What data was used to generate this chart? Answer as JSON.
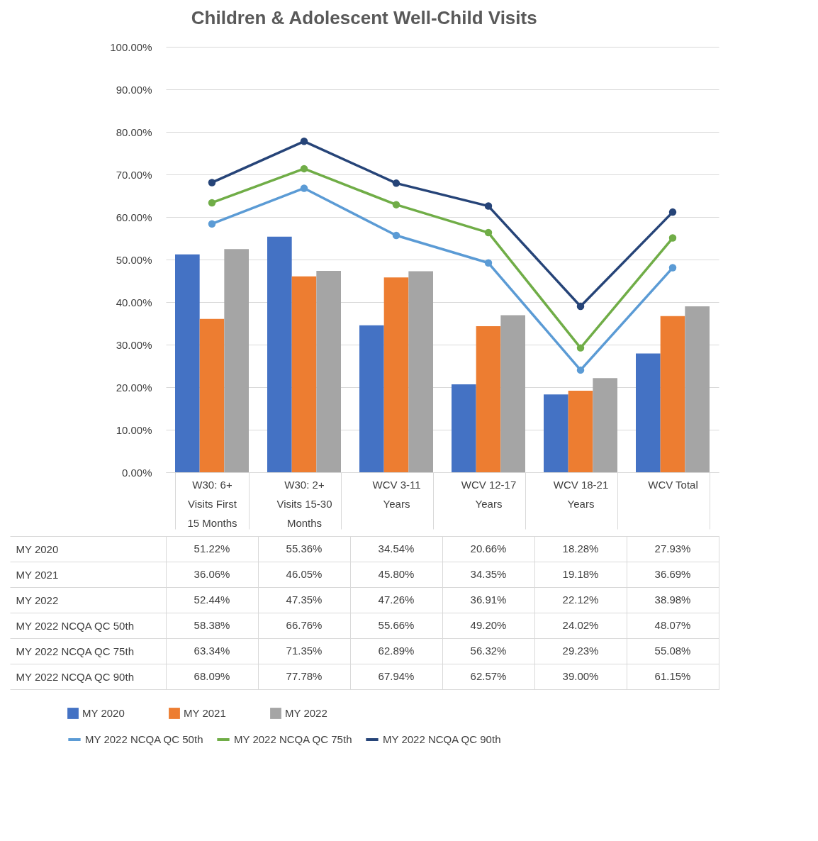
{
  "chart_data": {
    "type": "bar",
    "title": "Children & Adolescent Well-Child Visits",
    "categories": [
      "W30: 6+ Visits First 15 Months",
      "W30: 2+ Visits 15-30 Months",
      "WCV 3-11 Years",
      "WCV 12-17 Years",
      "WCV 18-21 Years",
      "WCV Total"
    ],
    "ylim": [
      0,
      100
    ],
    "yticks": [
      {
        "value": 0,
        "label": "0.00%"
      },
      {
        "value": 10,
        "label": "10.00%"
      },
      {
        "value": 20,
        "label": "20.00%"
      },
      {
        "value": 30,
        "label": "30.00%"
      },
      {
        "value": 40,
        "label": "40.00%"
      },
      {
        "value": 50,
        "label": "50.00%"
      },
      {
        "value": 60,
        "label": "60.00%"
      },
      {
        "value": 70,
        "label": "70.00%"
      },
      {
        "value": 80,
        "label": "80.00%"
      },
      {
        "value": 90,
        "label": "90.00%"
      },
      {
        "value": 100,
        "label": "100.00%"
      }
    ],
    "grid": "y",
    "legend": "bottom",
    "marker": "circle",
    "series": [
      {
        "name": "MY 2020",
        "color": "#4472c4",
        "values": [
          51.22,
          55.36,
          34.54,
          20.66,
          18.28,
          27.93
        ],
        "value_labels": [
          "51.22%",
          "55.36%",
          "34.54%",
          "20.66%",
          "18.28%",
          "27.93%"
        ]
      },
      {
        "name": "MY 2021",
        "color": "#ed7d31",
        "values": [
          36.06,
          46.05,
          45.8,
          34.35,
          19.18,
          36.69
        ],
        "value_labels": [
          "36.06%",
          "46.05%",
          "45.80%",
          "34.35%",
          "19.18%",
          "36.69%"
        ]
      },
      {
        "name": "MY 2022",
        "color": "#a5a5a5",
        "values": [
          52.44,
          47.35,
          47.26,
          36.91,
          22.12,
          38.98
        ],
        "value_labels": [
          "52.44%",
          "47.35%",
          "47.26%",
          "36.91%",
          "22.12%",
          "38.98%"
        ]
      },
      {
        "name": "MY 2022 NCQA QC 50th",
        "type": "line",
        "color": "#5b9bd5",
        "values": [
          58.38,
          66.76,
          55.66,
          49.2,
          24.02,
          48.07
        ],
        "value_labels": [
          "58.38%",
          "66.76%",
          "55.66%",
          "49.20%",
          "24.02%",
          "48.07%"
        ]
      },
      {
        "name": "MY 2022 NCQA QC 75th",
        "type": "line",
        "color": "#70ad47",
        "values": [
          63.34,
          71.35,
          62.89,
          56.32,
          29.23,
          55.08
        ],
        "value_labels": [
          "63.34%",
          "71.35%",
          "62.89%",
          "56.32%",
          "29.23%",
          "55.08%"
        ]
      },
      {
        "name": "MY 2022 NCQA QC 90th",
        "type": "line",
        "color": "#264478",
        "values": [
          68.09,
          77.78,
          67.94,
          62.57,
          39.0,
          61.15
        ],
        "value_labels": [
          "68.09%",
          "77.78%",
          "67.94%",
          "62.57%",
          "39.00%",
          "61.15%"
        ]
      }
    ]
  }
}
